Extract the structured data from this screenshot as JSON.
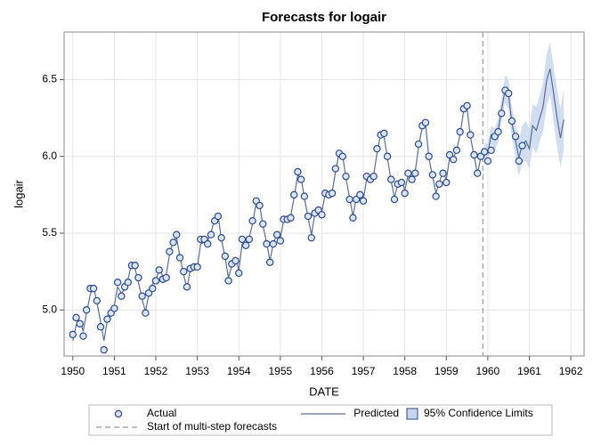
{
  "chart_data": {
    "type": "forecast",
    "title": "Forecasts for logair",
    "x_label": "DATE",
    "y_label": "logair",
    "x": [
      1950,
      1950.08,
      1950.17,
      1950.25,
      1950.33,
      1950.42,
      1950.5,
      1950.58,
      1950.67,
      1950.75,
      1950.83,
      1950.92,
      1951,
      1951.08,
      1951.17,
      1951.25,
      1951.33,
      1951.42,
      1951.5,
      1951.58,
      1951.67,
      1951.75,
      1951.83,
      1951.92,
      1952,
      1952.08,
      1952.17,
      1952.25,
      1952.33,
      1952.42,
      1952.5,
      1952.58,
      1952.67,
      1952.75,
      1952.83,
      1952.92,
      1953,
      1953.08,
      1953.17,
      1953.25,
      1953.33,
      1953.42,
      1953.5,
      1953.58,
      1953.67,
      1953.75,
      1953.83,
      1953.92,
      1954,
      1954.08,
      1954.17,
      1954.25,
      1954.33,
      1954.42,
      1954.5,
      1954.58,
      1954.67,
      1954.75,
      1954.83,
      1954.92,
      1955,
      1955.08,
      1955.17,
      1955.25,
      1955.33,
      1955.42,
      1955.5,
      1955.58,
      1955.67,
      1955.75,
      1955.83,
      1955.92,
      1956,
      1956.08,
      1956.17,
      1956.25,
      1956.33,
      1956.42,
      1956.5,
      1956.58,
      1956.67,
      1956.75,
      1956.83,
      1956.92,
      1957,
      1957.08,
      1957.17,
      1957.25,
      1957.33,
      1957.42,
      1957.5,
      1957.58,
      1957.67,
      1957.75,
      1957.83,
      1957.92,
      1958,
      1958.08,
      1958.17,
      1958.25,
      1958.33,
      1958.42,
      1958.5,
      1958.58,
      1958.67,
      1958.75,
      1958.83,
      1958.92,
      1959,
      1959.08,
      1959.17,
      1959.25,
      1959.33,
      1959.42,
      1959.5,
      1959.58,
      1959.67,
      1959.75,
      1959.83,
      1959.92,
      1960,
      1960.08,
      1960.17,
      1960.25,
      1960.33,
      1960.42,
      1960.5,
      1960.58,
      1960.67,
      1960.75,
      1960.83,
      1960.92,
      1961,
      1961.08,
      1961.17,
      1961.25,
      1961.33,
      1961.42,
      1961.5,
      1961.58,
      1961.67,
      1961.75,
      1961.83
    ],
    "series": [
      {
        "name": "Actual",
        "color": "#2a4a8a",
        "values": [
          4.84,
          4.95,
          4.91,
          4.83,
          5.0,
          5.14,
          5.14,
          5.06,
          4.89,
          4.74,
          4.94,
          4.98,
          5.01,
          5.18,
          5.09,
          5.15,
          5.18,
          5.29,
          5.29,
          5.21,
          5.09,
          4.98,
          5.11,
          5.14,
          5.19,
          5.26,
          5.2,
          5.21,
          5.38,
          5.44,
          5.49,
          5.34,
          5.25,
          5.15,
          5.27,
          5.28,
          5.28,
          5.46,
          5.46,
          5.43,
          5.49,
          5.58,
          5.61,
          5.47,
          5.35,
          5.19,
          5.3,
          5.32,
          5.24,
          5.46,
          5.42,
          5.46,
          5.58,
          5.71,
          5.68,
          5.56,
          5.43,
          5.31,
          5.43,
          5.49,
          5.45,
          5.59,
          5.59,
          5.6,
          5.75,
          5.9,
          5.85,
          5.74,
          5.61,
          5.47,
          5.63,
          5.65,
          5.62,
          5.76,
          5.75,
          5.76,
          5.92,
          6.02,
          6.0,
          5.87,
          5.72,
          5.6,
          5.72,
          5.75,
          5.71,
          5.87,
          5.85,
          5.87,
          6.05,
          6.14,
          6.15,
          6.0,
          5.85,
          5.72,
          5.82,
          5.83,
          5.76,
          5.89,
          5.85,
          5.89,
          6.08,
          6.2,
          6.22,
          6.0,
          5.88,
          5.74,
          5.82,
          5.89,
          5.83,
          6.01,
          5.98,
          6.04,
          6.16,
          6.31,
          6.33,
          6.14,
          6.01,
          5.89,
          6.0,
          6.03,
          5.97,
          6.04,
          6.13,
          6.16,
          6.28,
          6.43,
          6.41,
          6.23,
          6.13,
          5.97,
          6.07,
          null,
          null,
          null,
          null,
          null,
          null,
          null,
          null,
          null,
          null,
          null,
          null
        ]
      },
      {
        "name": "Predicted",
        "color": "#5a6e94",
        "values": [
          4.8,
          4.9,
          4.93,
          4.86,
          4.98,
          5.1,
          5.15,
          5.05,
          4.92,
          4.8,
          4.93,
          4.99,
          5.03,
          5.15,
          5.11,
          5.13,
          5.2,
          5.31,
          5.27,
          5.18,
          5.07,
          4.99,
          5.1,
          5.17,
          5.19,
          5.27,
          5.22,
          5.23,
          5.36,
          5.45,
          5.47,
          5.35,
          5.23,
          5.14,
          5.26,
          5.3,
          5.28,
          5.43,
          5.44,
          5.45,
          5.5,
          5.6,
          5.62,
          5.46,
          5.34,
          5.21,
          5.29,
          5.34,
          5.26,
          5.43,
          5.44,
          5.47,
          5.56,
          5.7,
          5.69,
          5.55,
          5.44,
          5.32,
          5.43,
          5.5,
          5.47,
          5.58,
          5.6,
          5.61,
          5.73,
          5.88,
          5.86,
          5.73,
          5.6,
          5.49,
          5.62,
          5.67,
          5.64,
          5.75,
          5.76,
          5.77,
          5.9,
          6.03,
          6.01,
          5.86,
          5.73,
          5.61,
          5.73,
          5.77,
          5.72,
          5.85,
          5.86,
          5.88,
          6.02,
          6.15,
          6.13,
          5.99,
          5.84,
          5.73,
          5.82,
          5.85,
          5.78,
          5.88,
          5.86,
          5.9,
          6.06,
          6.19,
          6.21,
          5.99,
          5.87,
          5.76,
          5.83,
          5.9,
          5.85,
          5.99,
          5.99,
          6.04,
          6.14,
          6.3,
          6.31,
          6.13,
          6.0,
          5.89,
          5.99,
          6.04,
          6.02,
          6.14,
          6.11,
          6.17,
          6.3,
          6.44,
          6.4,
          6.22,
          6.1,
          5.99,
          6.08,
          6.1,
          6.05,
          6.2,
          6.17,
          6.25,
          6.32,
          6.5,
          6.57,
          6.42,
          6.25,
          6.12,
          6.24
        ]
      }
    ],
    "band": {
      "name": "95% Confidence Limits",
      "color": "#c6d4ec",
      "x": [
        1959.92,
        1960,
        1960.08,
        1960.17,
        1960.25,
        1960.33,
        1960.42,
        1960.5,
        1960.58,
        1960.67,
        1960.75,
        1960.83,
        1960.92,
        1961,
        1961.08,
        1961.17,
        1961.25,
        1961.33,
        1961.42,
        1961.5,
        1961.58,
        1961.67,
        1961.75,
        1961.83
      ],
      "upper": [
        6.09,
        6.08,
        6.2,
        6.18,
        6.25,
        6.38,
        6.53,
        6.5,
        6.32,
        6.21,
        6.11,
        6.2,
        6.23,
        6.18,
        6.34,
        6.32,
        6.4,
        6.48,
        6.67,
        6.74,
        6.6,
        6.44,
        6.31,
        6.44
      ],
      "lower": [
        5.99,
        5.96,
        6.08,
        6.04,
        6.09,
        6.22,
        6.35,
        6.3,
        6.12,
        5.99,
        5.87,
        5.96,
        5.97,
        5.92,
        6.06,
        6.02,
        6.1,
        6.16,
        6.33,
        6.4,
        6.24,
        6.06,
        5.93,
        6.04
      ]
    },
    "reference_line": {
      "name": "Start of multi-step forecasts",
      "value": 1959.88,
      "color": "#999999"
    },
    "xlim": [
      1949.79,
      1962.32
    ],
    "ylim": [
      4.7,
      6.81
    ],
    "xticks": [
      1950,
      1951,
      1952,
      1953,
      1954,
      1955,
      1956,
      1957,
      1958,
      1959,
      1960,
      1961,
      1962
    ],
    "yticks": [
      {
        "value": 5,
        "label": "5.0"
      },
      5.5,
      {
        "value": 6,
        "label": "6.0"
      },
      6.5
    ],
    "grid": true
  }
}
